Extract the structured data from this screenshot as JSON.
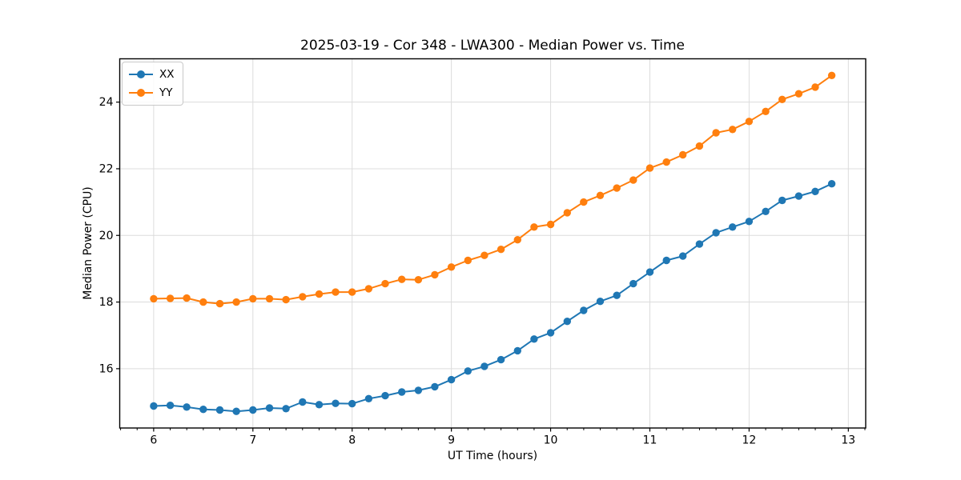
{
  "page": {
    "background": "#ffffff"
  },
  "chart_data": {
    "type": "line",
    "title": "2025-03-19 - Cor 348 - LWA300 - Median Power vs. Time",
    "xlabel": "UT Time (hours)",
    "ylabel": "Median Power (CPU)",
    "xlim": [
      5.658,
      13.175
    ],
    "ylim": [
      14.22,
      25.3
    ],
    "xticks": [
      6,
      7,
      8,
      9,
      10,
      11,
      12,
      13
    ],
    "yticks": [
      16,
      18,
      20,
      22,
      24
    ],
    "x_minor_step": 0.16667,
    "grid": true,
    "grid_color": "#dcdcdc",
    "legend_position": "upper left",
    "x": [
      6.0,
      6.167,
      6.333,
      6.5,
      6.667,
      6.833,
      7.0,
      7.167,
      7.333,
      7.5,
      7.667,
      7.833,
      8.0,
      8.167,
      8.333,
      8.5,
      8.667,
      8.833,
      9.0,
      9.167,
      9.333,
      9.5,
      9.667,
      9.833,
      10.0,
      10.167,
      10.333,
      10.5,
      10.667,
      10.833,
      11.0,
      11.167,
      11.333,
      11.5,
      11.667,
      11.833,
      12.0,
      12.167,
      12.333,
      12.5,
      12.667,
      12.833
    ],
    "series": [
      {
        "name": "XX",
        "color": "#1f77b4",
        "values": [
          14.88,
          14.9,
          14.85,
          14.78,
          14.76,
          14.72,
          14.76,
          14.82,
          14.8,
          15.0,
          14.92,
          14.96,
          14.95,
          15.1,
          15.19,
          15.3,
          15.35,
          15.46,
          15.67,
          15.93,
          16.07,
          16.27,
          16.54,
          16.89,
          17.08,
          17.42,
          17.75,
          18.02,
          18.2,
          18.55,
          18.9,
          19.25,
          19.38,
          19.74,
          20.08,
          20.25,
          20.42,
          20.72,
          21.05,
          21.18,
          21.32,
          21.55
        ]
      },
      {
        "name": "YY",
        "color": "#ff7f0e",
        "values": [
          18.1,
          18.11,
          18.12,
          18.0,
          17.95,
          18.0,
          18.1,
          18.1,
          18.07,
          18.16,
          18.24,
          18.3,
          18.3,
          18.4,
          18.55,
          18.68,
          18.67,
          18.82,
          19.05,
          19.25,
          19.4,
          19.58,
          19.87,
          20.25,
          20.33,
          20.68,
          21.0,
          21.2,
          21.42,
          21.66,
          22.02,
          22.2,
          22.42,
          22.68,
          23.08,
          23.18,
          23.42,
          23.72,
          24.08,
          24.25,
          24.45,
          24.8
        ]
      }
    ]
  }
}
